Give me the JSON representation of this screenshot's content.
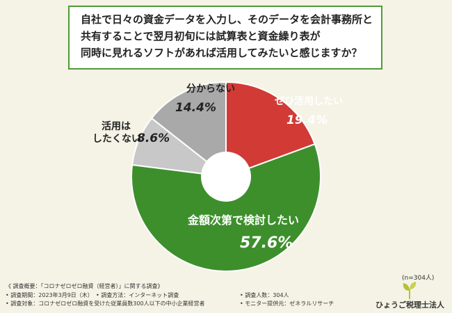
{
  "title_lines": [
    "自社で日々の資金データを入力し、そのデータを会計事務所と",
    "共有することで翌月初旬には試算表と資金繰り表が",
    "同時に見れるソフトがあれば活用してみたいと感じますか？"
  ],
  "chart_data": {
    "type": "pie",
    "donut": true,
    "slices": [
      {
        "label": "ぜひ活用したい",
        "value": 19.4,
        "value_label": "19.4%",
        "color": "#d23a35"
      },
      {
        "label": "金額次第で検討したい",
        "value": 57.6,
        "value_label": "57.6%",
        "color": "#3d8f2c"
      },
      {
        "label": "活用は したくない",
        "value": 8.6,
        "value_label": "8.6%",
        "color": "#c8c8c8"
      },
      {
        "label": "分からない",
        "value": 14.4,
        "value_label": "14.4%",
        "color": "#a9a9a9"
      }
    ],
    "sample_size": "(n=304人)"
  },
  "footer": {
    "overview": "《 調査概要：「コロナゼロゼロ融資（経営者）」に関する調査》",
    "period": "• 調査期間：2023年3月9日（木）",
    "method": "• 調査方法：インターネット調査",
    "people": "• 調査人数：304人",
    "target": "• 調査対象：コロナゼロゼロ融資を受けた従業員数300人以下の中小企業経営者",
    "provider": "• モニター提供元：ゼネラルリサーチ"
  },
  "logo": {
    "text": "ひょうご税理士法人",
    "icon": "leaf-sprout-icon",
    "color": "#b5c13a"
  }
}
